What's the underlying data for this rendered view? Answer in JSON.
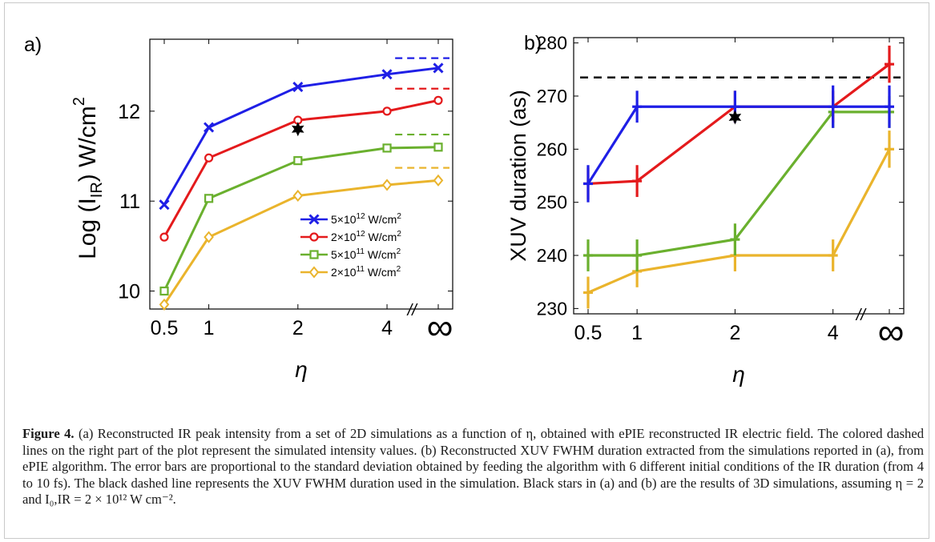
{
  "chart_data": [
    {
      "type": "line",
      "panel_label": "a)",
      "ylabel_main": "Log (I",
      "ylabel_sub": "IR",
      "ylabel_tail": ") W/cm",
      "ylabel_sup": "2",
      "xlabel": "η",
      "x_ticks": [
        "0.5",
        "1",
        "2",
        "4",
        "∞"
      ],
      "x_positions": [
        0.5,
        1,
        2,
        4,
        5
      ],
      "ylim": [
        9.8,
        12.8
      ],
      "y_ticks": [
        "10",
        "11",
        "12"
      ],
      "axis_break": "//",
      "legend_position": "lower-right",
      "series": [
        {
          "name": "5×10",
          "exp": "12",
          "unit": " W/cm",
          "unit_sup": "2",
          "color": "#1f1fe6",
          "marker": "x",
          "values": [
            10.96,
            11.82,
            12.27,
            12.41,
            12.48
          ],
          "sim_value": 12.59
        },
        {
          "name": "2×10",
          "exp": "12",
          "unit": " W/cm",
          "unit_sup": "2",
          "color": "#e41a1c",
          "marker": "circle",
          "values": [
            10.6,
            11.48,
            11.9,
            12.0,
            12.12
          ],
          "sim_value": 12.25
        },
        {
          "name": "5×10",
          "exp": "11",
          "unit": " W/cm",
          "unit_sup": "2",
          "color": "#6ab02e",
          "marker": "square",
          "values": [
            10.0,
            11.03,
            11.45,
            11.59,
            11.6
          ],
          "sim_value": 11.74
        },
        {
          "name": "2×10",
          "exp": "11",
          "unit": " W/cm",
          "unit_sup": "2",
          "color": "#eab42c",
          "marker": "diamond",
          "values": [
            9.85,
            10.6,
            11.06,
            11.18,
            11.23
          ],
          "sim_value": 11.37
        }
      ],
      "star": {
        "x": 2,
        "y": 11.8
      }
    },
    {
      "type": "line",
      "panel_label": "b)",
      "ylabel": "XUV duration (as)",
      "xlabel": "η",
      "x_ticks": [
        "0.5",
        "1",
        "2",
        "4",
        "∞"
      ],
      "x_positions": [
        0.5,
        1,
        2,
        4,
        5
      ],
      "ylim": [
        229,
        281
      ],
      "y_ticks": [
        "230",
        "240",
        "250",
        "260",
        "270",
        "280"
      ],
      "axis_break": "//",
      "reference_value": 273.5,
      "series": [
        {
          "name": "5×10^12 W/cm^2",
          "color": "#1f1fe6",
          "values": [
            253.5,
            268,
            268,
            268,
            268
          ],
          "errors": [
            3.5,
            3,
            3,
            4,
            4
          ]
        },
        {
          "name": "2×10^12 W/cm^2",
          "color": "#e41a1c",
          "values": [
            253.5,
            254,
            268,
            268,
            276
          ],
          "errors": [
            3,
            3,
            3,
            3,
            3.5
          ]
        },
        {
          "name": "5×10^11 W/cm^2",
          "color": "#6ab02e",
          "values": [
            240,
            240,
            243,
            267,
            267
          ],
          "errors": [
            3,
            3,
            3,
            3,
            3
          ]
        },
        {
          "name": "2×10^11 W/cm^2",
          "color": "#eab42c",
          "values": [
            233,
            237,
            240,
            240,
            260
          ],
          "errors": [
            3,
            3,
            3,
            3,
            3.5
          ]
        }
      ],
      "star": {
        "x": 2,
        "y": 266
      }
    }
  ],
  "caption": {
    "label": "Figure 4.",
    "text": " (a) Reconstructed IR peak intensity from a set of 2D simulations as a function of η, obtained with ePIE reconstructed IR electric field. The colored dashed lines on the right part of the plot represent the simulated intensity values. (b) Reconstructed XUV FWHM duration extracted from the simulations reported in (a), from ePIE algorithm. The error bars are proportional to the standard deviation obtained by feeding the algorithm with 6 different initial conditions of the IR duration (from 4 to 10 fs). The black dashed line represents the XUV FWHM duration used in the simulation. Black stars in (a) and (b) are the results of 3D simulations, assuming η = 2 and I₀,IR = 2 × 10¹² W cm⁻²."
  }
}
